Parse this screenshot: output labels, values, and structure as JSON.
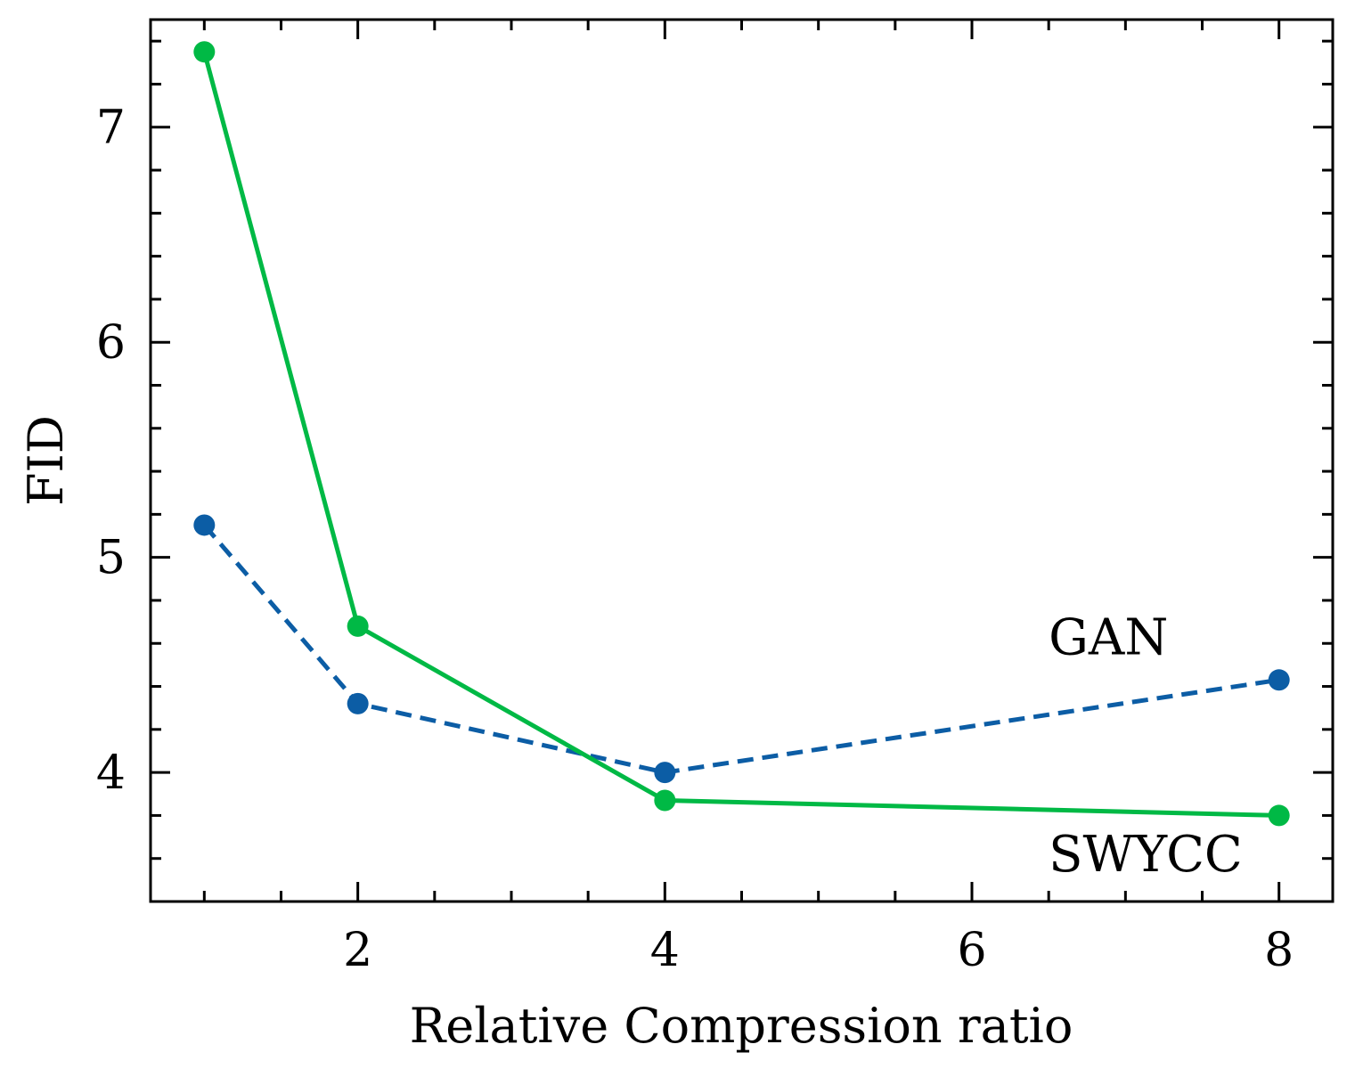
{
  "chart_data": {
    "type": "line",
    "title": "",
    "xlabel": "Relative Compression ratio",
    "ylabel": "FID",
    "xlim": [
      0.65,
      8.35
    ],
    "ylim": [
      3.4,
      7.5
    ],
    "xticks": [
      2,
      4,
      6,
      8
    ],
    "xtick_labels": [
      "2",
      "4",
      "6",
      "8"
    ],
    "yticks": [
      4,
      5,
      6,
      7
    ],
    "ytick_labels": [
      "4",
      "5",
      "6",
      "7"
    ],
    "x_minor_step": 0.5,
    "y_minor_step": 0.2,
    "grid": false,
    "series": [
      {
        "name": "GAN",
        "color": "#0c5da5",
        "style": "dashed",
        "x": [
          1,
          2,
          4,
          8
        ],
        "y": [
          5.15,
          4.32,
          4.0,
          4.43
        ]
      },
      {
        "name": "SWYCC",
        "color": "#00b945",
        "style": "solid",
        "x": [
          1,
          2,
          4,
          8
        ],
        "y": [
          7.35,
          4.68,
          3.87,
          3.8
        ]
      }
    ],
    "annotations": [
      {
        "text": "GAN",
        "x": 6.5,
        "y": 4.55,
        "series": "GAN"
      },
      {
        "text": "SWYCC",
        "x": 6.5,
        "y": 3.54,
        "series": "SWYCC"
      }
    ]
  }
}
